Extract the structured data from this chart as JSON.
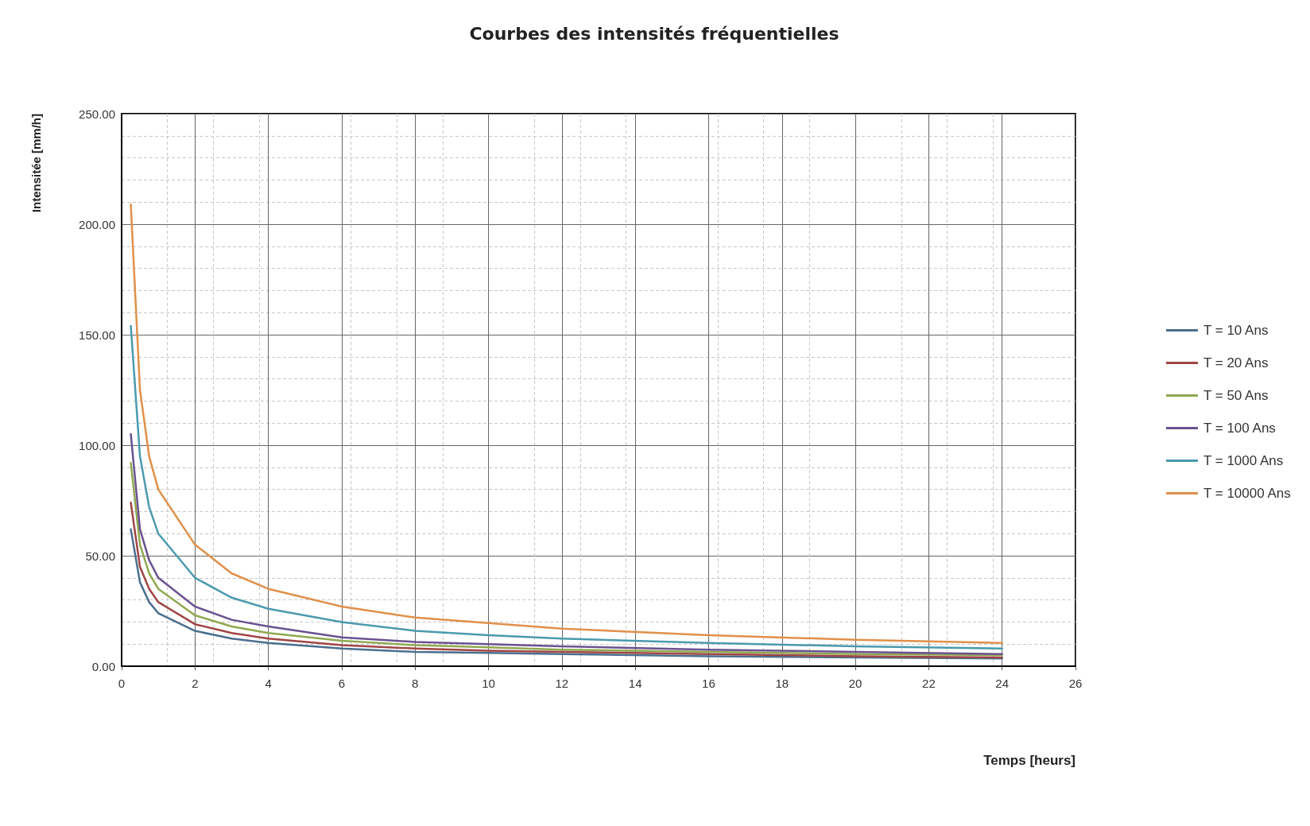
{
  "chart_data": {
    "type": "line",
    "title": "Courbes des intensités fréquentielles",
    "xlabel": "Temps [heurs]",
    "ylabel": "Intensitée [mm/h]",
    "x": [
      0.25,
      0.5,
      0.75,
      1,
      2,
      3,
      4,
      6,
      8,
      10,
      12,
      16,
      20,
      24
    ],
    "series": [
      {
        "name": "T = 10 Ans",
        "color": "#4a6f8f",
        "values": [
          62,
          38,
          29,
          24,
          16,
          12.5,
          10.5,
          8,
          6.5,
          6,
          5.5,
          4.5,
          4,
          3.5
        ]
      },
      {
        "name": "T = 20 Ans",
        "color": "#a04545",
        "values": [
          74,
          45,
          35,
          29,
          19,
          15,
          12.5,
          9.5,
          8,
          7,
          6.5,
          5.5,
          4.5,
          4
        ]
      },
      {
        "name": "T = 50 Ans",
        "color": "#90a850",
        "values": [
          92,
          55,
          42,
          35,
          23,
          18,
          15,
          11.5,
          9.5,
          8.5,
          7.5,
          6.5,
          5.5,
          5
        ]
      },
      {
        "name": "T = 100 Ans",
        "color": "#6a5290",
        "values": [
          105,
          62,
          48,
          40,
          27,
          21,
          18,
          13,
          11,
          10,
          9,
          7.5,
          6.5,
          5.5
        ]
      },
      {
        "name": "T = 1000 Ans",
        "color": "#4a9aae",
        "values": [
          154,
          95,
          72,
          60,
          40,
          31,
          26,
          20,
          16,
          14,
          12.5,
          10.5,
          9,
          8
        ]
      },
      {
        "name": "T = 10000 Ans",
        "color": "#e0904a",
        "values": [
          209,
          125,
          95,
          80,
          55,
          42,
          35,
          27,
          22,
          19.5,
          17,
          14,
          12,
          10.5
        ]
      }
    ],
    "xlim": [
      0,
      26
    ],
    "xticks": [
      0,
      2,
      4,
      6,
      8,
      10,
      12,
      14,
      16,
      18,
      20,
      22,
      24,
      26
    ],
    "ylim": [
      0,
      250
    ],
    "yticks": [
      {
        "value": 0,
        "label": "0.00"
      },
      {
        "value": 50,
        "label": "50.00"
      },
      {
        "value": 100,
        "label": "100.00"
      },
      {
        "value": 150,
        "label": "150.00"
      },
      {
        "value": 200,
        "label": "200.00"
      },
      {
        "value": 250,
        "label": "250.00"
      }
    ],
    "grid": true,
    "legend": "right",
    "marker": "none",
    "line_style": "solid"
  }
}
